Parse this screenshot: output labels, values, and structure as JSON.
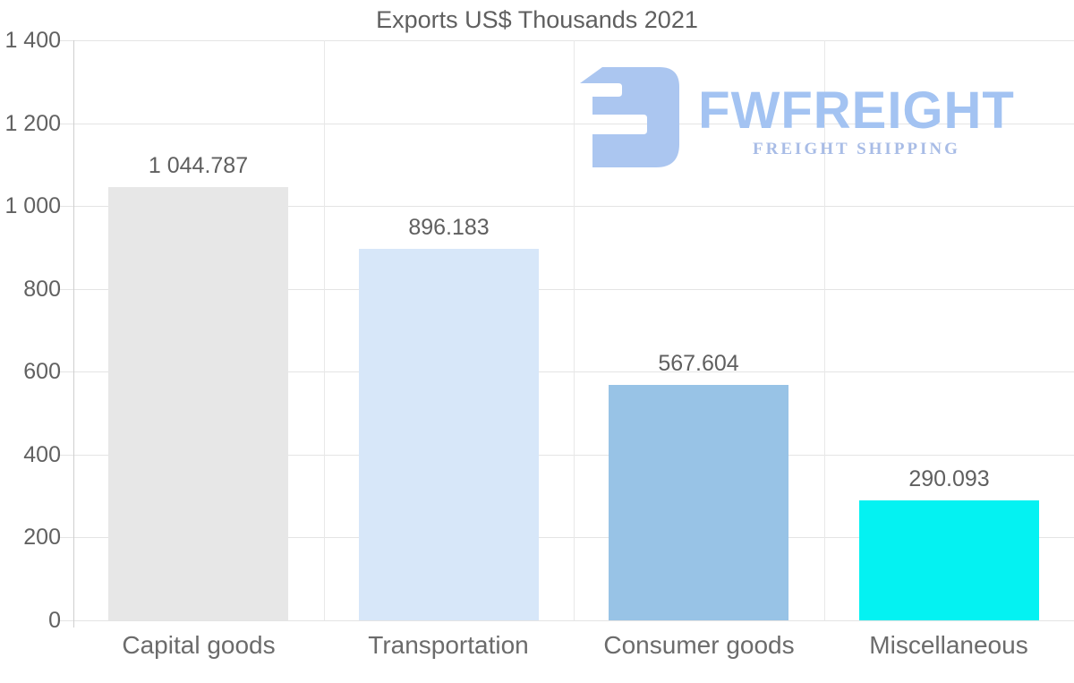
{
  "chart_data": {
    "type": "bar",
    "title": "Exports US$ Thousands 2021",
    "categories": [
      "Capital goods",
      "Transportation",
      "Consumer goods",
      "Miscellaneous"
    ],
    "values": [
      1044.787,
      896.183,
      567.604,
      290.093
    ],
    "value_labels": [
      "1 044.787",
      "896.183",
      "567.604",
      "290.093"
    ],
    "bar_colors": [
      "#e7e7e7",
      "#d7e7f9",
      "#98c3e6",
      "#04f2f2"
    ],
    "ylim": [
      0,
      1400
    ],
    "ytick_values": [
      1400,
      1200,
      1000,
      800,
      600,
      400,
      200,
      0
    ],
    "ytick_labels": [
      "1 400",
      "1 200",
      "1 000",
      "800",
      "600",
      "400",
      "200",
      "0"
    ],
    "grid": true,
    "legend": false,
    "xlabel": "",
    "ylabel": ""
  },
  "logo": {
    "wordmark": "FWFREIGHT",
    "tagline": "FREIGHT SHIPPING",
    "mark_color": "#abc6f0",
    "wordmark_color": "#a3c3f2",
    "tagline_color": "#a8bce6"
  },
  "colors": {
    "text": "#5f5f5f",
    "gridline": "#e4e4e4",
    "axis": "#cfcfcf",
    "background": "#ffffff"
  }
}
